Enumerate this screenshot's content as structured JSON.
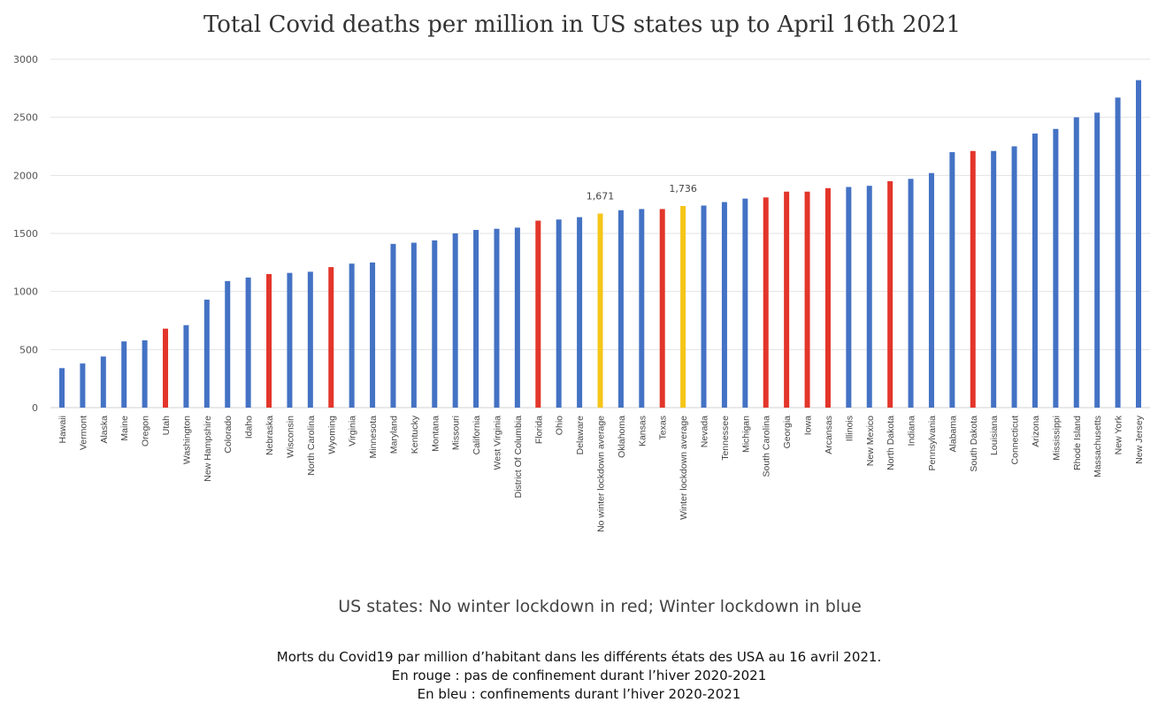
{
  "chart_data": {
    "type": "bar",
    "title": "Total Covid deaths per million in US states up to April 16th 2021",
    "xlabel": "US states: No winter lockdown in red; Winter lockdown in blue",
    "ylabel": "",
    "ylim": [
      0,
      3000
    ],
    "yticks": [
      "0",
      "500",
      "1000",
      "1500",
      "2000",
      "2500",
      "3000"
    ],
    "grid": true,
    "colors": {
      "winter_lockdown": "#4472c4",
      "no_winter_lockdown": "#e3352a",
      "average": "#f5c518"
    },
    "categories": [
      "Hawaii",
      "Vermont",
      "Alaska",
      "Maine",
      "Oregon",
      "Utah",
      "Washington",
      "New Hampshire",
      "Colorado",
      "Idaho",
      "Nebraska",
      "Wisconsin",
      "North Carolina",
      "Wyoming",
      "Virginia",
      "Minnesota",
      "Maryland",
      "Kentucky",
      "Montana",
      "Missouri",
      "California",
      "West Virginia",
      "District Of Columbia",
      "Florida",
      "Ohio",
      "Delaware",
      "No winter lockdown average",
      "Oklahoma",
      "Kansas",
      "Texas",
      "Winter lockdown average",
      "Nevada",
      "Tennessee",
      "Michigan",
      "South Carolina",
      "Georgia",
      "Iowa",
      "Arcansas",
      "Illinois",
      "New Mexico",
      "North Dakota",
      "Indiana",
      "Pennsylvania",
      "Alabama",
      "South Dakota",
      "Louisiana",
      "Connecticut",
      "Arizona",
      "Mississippi",
      "Rhode Island",
      "Massachusetts",
      "New York",
      "New Jersey"
    ],
    "values": [
      340,
      380,
      440,
      570,
      580,
      680,
      710,
      930,
      1090,
      1120,
      1150,
      1160,
      1170,
      1210,
      1240,
      1250,
      1410,
      1420,
      1440,
      1500,
      1530,
      1540,
      1550,
      1610,
      1620,
      1640,
      1671,
      1700,
      1710,
      1710,
      1736,
      1740,
      1770,
      1800,
      1810,
      1860,
      1860,
      1890,
      1900,
      1910,
      1950,
      1970,
      2020,
      2200,
      2210,
      2210,
      2250,
      2360,
      2400,
      2500,
      2540,
      2670,
      2820
    ],
    "groups": [
      "winter_lockdown",
      "winter_lockdown",
      "winter_lockdown",
      "winter_lockdown",
      "winter_lockdown",
      "no_winter_lockdown",
      "winter_lockdown",
      "winter_lockdown",
      "winter_lockdown",
      "winter_lockdown",
      "no_winter_lockdown",
      "winter_lockdown",
      "winter_lockdown",
      "no_winter_lockdown",
      "winter_lockdown",
      "winter_lockdown",
      "winter_lockdown",
      "winter_lockdown",
      "winter_lockdown",
      "winter_lockdown",
      "winter_lockdown",
      "winter_lockdown",
      "winter_lockdown",
      "no_winter_lockdown",
      "winter_lockdown",
      "winter_lockdown",
      "average",
      "winter_lockdown",
      "winter_lockdown",
      "no_winter_lockdown",
      "average",
      "winter_lockdown",
      "winter_lockdown",
      "winter_lockdown",
      "no_winter_lockdown",
      "no_winter_lockdown",
      "no_winter_lockdown",
      "no_winter_lockdown",
      "winter_lockdown",
      "winter_lockdown",
      "no_winter_lockdown",
      "winter_lockdown",
      "winter_lockdown",
      "winter_lockdown",
      "no_winter_lockdown",
      "winter_lockdown",
      "winter_lockdown",
      "winter_lockdown",
      "winter_lockdown",
      "winter_lockdown",
      "winter_lockdown",
      "winter_lockdown",
      "winter_lockdown"
    ],
    "data_labels": [
      {
        "category": "No winter lockdown average",
        "text": "1,671"
      },
      {
        "category": "Winter lockdown average",
        "text": "1,736"
      }
    ]
  },
  "caption": {
    "line1": "Morts du Covid19 par million d’habitant dans les différents états des USA au 16 avril 2021.",
    "line2": "En rouge : pas de confinement durant l’hiver 2020-2021",
    "line3": "En bleu : confinements durant l’hiver 2020-2021"
  }
}
